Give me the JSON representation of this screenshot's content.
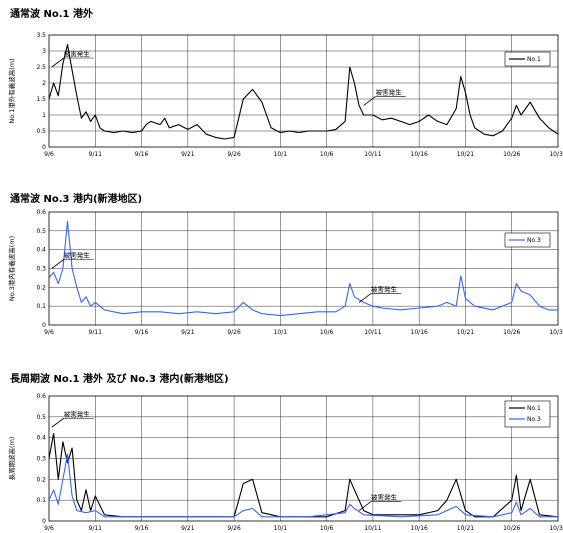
{
  "charts": [
    {
      "title": "通常波 No.1 港外",
      "chart_data": {
        "type": "line",
        "ylabel": "No.1港外有義波高(m)",
        "ylim": [
          0,
          3.5
        ],
        "yticks": [
          "0",
          "0.5",
          "1",
          "1.5",
          "2",
          "2.5",
          "3",
          "3.5"
        ],
        "xlim_days": [
          0,
          55
        ],
        "xtick_labels": [
          "9/6",
          "9/11",
          "9/16",
          "9/21",
          "9/26",
          "10/1",
          "10/6",
          "10/11",
          "10/16",
          "10/21",
          "10/26",
          "10/31"
        ],
        "grid": true,
        "legend_position": "top-right",
        "series": [
          {
            "name": "No.1",
            "color": "#000000",
            "points": [
              [
                0,
                1.5
              ],
              [
                0.5,
                2.0
              ],
              [
                1,
                1.6
              ],
              [
                1.5,
                2.6
              ],
              [
                2,
                3.2
              ],
              [
                2.5,
                2.4
              ],
              [
                3,
                1.6
              ],
              [
                3.5,
                0.9
              ],
              [
                4,
                1.1
              ],
              [
                4.5,
                0.8
              ],
              [
                5,
                1.0
              ],
              [
                5.5,
                0.6
              ],
              [
                6,
                0.5
              ],
              [
                7,
                0.45
              ],
              [
                8,
                0.5
              ],
              [
                9,
                0.45
              ],
              [
                10,
                0.5
              ],
              [
                10.5,
                0.7
              ],
              [
                11,
                0.8
              ],
              [
                12,
                0.7
              ],
              [
                12.5,
                0.9
              ],
              [
                13,
                0.6
              ],
              [
                14,
                0.7
              ],
              [
                15,
                0.55
              ],
              [
                16,
                0.7
              ],
              [
                17,
                0.4
              ],
              [
                18,
                0.3
              ],
              [
                19,
                0.25
              ],
              [
                20,
                0.3
              ],
              [
                21,
                1.5
              ],
              [
                22,
                1.8
              ],
              [
                23,
                1.4
              ],
              [
                23.5,
                1.0
              ],
              [
                24,
                0.6
              ],
              [
                25,
                0.45
              ],
              [
                26,
                0.5
              ],
              [
                27,
                0.45
              ],
              [
                28,
                0.5
              ],
              [
                29,
                0.5
              ],
              [
                30,
                0.5
              ],
              [
                31,
                0.55
              ],
              [
                32,
                0.8
              ],
              [
                32.5,
                2.5
              ],
              [
                33,
                2.0
              ],
              [
                33.5,
                1.3
              ],
              [
                34,
                1.0
              ],
              [
                35,
                1.0
              ],
              [
                36,
                0.85
              ],
              [
                37,
                0.9
              ],
              [
                38,
                0.8
              ],
              [
                39,
                0.7
              ],
              [
                40,
                0.8
              ],
              [
                41,
                1.0
              ],
              [
                42,
                0.8
              ],
              [
                43,
                0.7
              ],
              [
                44,
                1.2
              ],
              [
                44.5,
                2.2
              ],
              [
                45,
                1.7
              ],
              [
                45.5,
                1.0
              ],
              [
                46,
                0.6
              ],
              [
                47,
                0.4
              ],
              [
                48,
                0.35
              ],
              [
                49,
                0.5
              ],
              [
                50,
                0.9
              ],
              [
                50.5,
                1.3
              ],
              [
                51,
                1.0
              ],
              [
                52,
                1.4
              ],
              [
                53,
                0.9
              ],
              [
                54,
                0.6
              ],
              [
                55,
                0.4
              ]
            ]
          }
        ],
        "annotations": [
          {
            "text": "被害発生",
            "x": 0.3,
            "y": 2.5
          },
          {
            "text": "被害発生",
            "x": 34.0,
            "y": 1.3
          }
        ]
      }
    },
    {
      "title": "通常波 No.3 港内(新港地区)",
      "chart_data": {
        "type": "line",
        "ylabel": "No.3港内有義波高(m)",
        "ylim": [
          0,
          0.6
        ],
        "yticks": [
          "0",
          "0.1",
          "0.2",
          "0.3",
          "0.4",
          "0.5",
          "0.6"
        ],
        "xlim_days": [
          0,
          55
        ],
        "xtick_labels": [
          "9/6",
          "9/11",
          "9/16",
          "9/21",
          "9/26",
          "10/1",
          "10/6",
          "10/11",
          "10/16",
          "10/21",
          "10/26",
          "10/31"
        ],
        "grid": true,
        "legend_position": "top-right",
        "series": [
          {
            "name": "No.3",
            "color": "#3366ff",
            "points": [
              [
                0,
                0.25
              ],
              [
                0.5,
                0.28
              ],
              [
                1,
                0.22
              ],
              [
                1.5,
                0.3
              ],
              [
                2,
                0.55
              ],
              [
                2.5,
                0.3
              ],
              [
                3,
                0.2
              ],
              [
                3.5,
                0.12
              ],
              [
                4,
                0.15
              ],
              [
                4.5,
                0.1
              ],
              [
                5,
                0.12
              ],
              [
                6,
                0.08
              ],
              [
                8,
                0.06
              ],
              [
                10,
                0.07
              ],
              [
                12,
                0.07
              ],
              [
                14,
                0.06
              ],
              [
                16,
                0.07
              ],
              [
                18,
                0.06
              ],
              [
                20,
                0.07
              ],
              [
                21,
                0.12
              ],
              [
                22,
                0.08
              ],
              [
                23,
                0.06
              ],
              [
                25,
                0.05
              ],
              [
                27,
                0.06
              ],
              [
                29,
                0.07
              ],
              [
                31,
                0.07
              ],
              [
                32,
                0.1
              ],
              [
                32.5,
                0.22
              ],
              [
                33,
                0.15
              ],
              [
                34,
                0.12
              ],
              [
                35,
                0.1
              ],
              [
                36,
                0.09
              ],
              [
                38,
                0.08
              ],
              [
                40,
                0.09
              ],
              [
                42,
                0.1
              ],
              [
                43,
                0.12
              ],
              [
                44,
                0.1
              ],
              [
                44.5,
                0.26
              ],
              [
                45,
                0.14
              ],
              [
                46,
                0.1
              ],
              [
                48,
                0.08
              ],
              [
                50,
                0.12
              ],
              [
                50.5,
                0.22
              ],
              [
                51,
                0.18
              ],
              [
                52,
                0.16
              ],
              [
                53,
                0.1
              ],
              [
                54,
                0.08
              ],
              [
                55,
                0.08
              ]
            ]
          }
        ],
        "annotations": [
          {
            "text": "被害発生",
            "x": 0.3,
            "y": 0.3
          },
          {
            "text": "被害発生",
            "x": 33.5,
            "y": 0.12
          }
        ]
      }
    },
    {
      "title": "長周期波 No.1 港外 及び No.3 港内(新港地区)",
      "chart_data": {
        "type": "line",
        "ylabel": "長周期波高(m)",
        "ylim": [
          0,
          0.6
        ],
        "yticks": [
          "0",
          "0.1",
          "0.2",
          "0.3",
          "0.4",
          "0.5",
          "0.6"
        ],
        "xlim_days": [
          0,
          55
        ],
        "xtick_labels": [
          "9/6",
          "9/11",
          "9/16",
          "9/21",
          "9/26",
          "10/1",
          "10/6",
          "10/11",
          "10/16",
          "10/21",
          "10/26",
          "10/31"
        ],
        "grid": true,
        "legend_position": "top-right",
        "series": [
          {
            "name": "No.1",
            "color": "#000000",
            "points": [
              [
                0,
                0.3
              ],
              [
                0.5,
                0.42
              ],
              [
                1,
                0.2
              ],
              [
                1.5,
                0.38
              ],
              [
                2,
                0.28
              ],
              [
                2.5,
                0.35
              ],
              [
                3,
                0.1
              ],
              [
                3.5,
                0.05
              ],
              [
                4,
                0.15
              ],
              [
                4.5,
                0.05
              ],
              [
                5,
                0.12
              ],
              [
                6,
                0.03
              ],
              [
                8,
                0.02
              ],
              [
                12,
                0.02
              ],
              [
                16,
                0.02
              ],
              [
                20,
                0.02
              ],
              [
                21,
                0.18
              ],
              [
                22,
                0.2
              ],
              [
                23,
                0.04
              ],
              [
                25,
                0.02
              ],
              [
                30,
                0.02
              ],
              [
                32,
                0.05
              ],
              [
                32.5,
                0.2
              ],
              [
                33,
                0.15
              ],
              [
                34,
                0.05
              ],
              [
                35,
                0.03
              ],
              [
                40,
                0.03
              ],
              [
                42,
                0.05
              ],
              [
                43,
                0.1
              ],
              [
                44,
                0.2
              ],
              [
                45,
                0.05
              ],
              [
                46,
                0.02
              ],
              [
                48,
                0.02
              ],
              [
                50,
                0.1
              ],
              [
                50.5,
                0.22
              ],
              [
                51,
                0.05
              ],
              [
                52,
                0.2
              ],
              [
                53,
                0.03
              ],
              [
                55,
                0.02
              ]
            ]
          },
          {
            "name": "No.3",
            "color": "#3366ff",
            "points": [
              [
                0,
                0.1
              ],
              [
                0.5,
                0.15
              ],
              [
                1,
                0.08
              ],
              [
                1.5,
                0.2
              ],
              [
                2,
                0.32
              ],
              [
                2.5,
                0.12
              ],
              [
                3,
                0.05
              ],
              [
                4,
                0.04
              ],
              [
                5,
                0.05
              ],
              [
                6,
                0.02
              ],
              [
                10,
                0.02
              ],
              [
                15,
                0.02
              ],
              [
                20,
                0.02
              ],
              [
                21,
                0.05
              ],
              [
                22,
                0.06
              ],
              [
                23,
                0.02
              ],
              [
                28,
                0.02
              ],
              [
                32,
                0.04
              ],
              [
                32.5,
                0.08
              ],
              [
                33,
                0.06
              ],
              [
                34,
                0.03
              ],
              [
                38,
                0.02
              ],
              [
                42,
                0.03
              ],
              [
                43,
                0.05
              ],
              [
                44,
                0.07
              ],
              [
                45,
                0.03
              ],
              [
                48,
                0.02
              ],
              [
                50,
                0.04
              ],
              [
                50.5,
                0.09
              ],
              [
                51,
                0.03
              ],
              [
                52,
                0.06
              ],
              [
                53,
                0.02
              ],
              [
                55,
                0.02
              ]
            ]
          }
        ],
        "annotations": [
          {
            "text": "被害発生",
            "x": 0.3,
            "y": 0.45
          },
          {
            "text": "被害発生",
            "x": 33.5,
            "y": 0.05
          }
        ]
      }
    }
  ]
}
